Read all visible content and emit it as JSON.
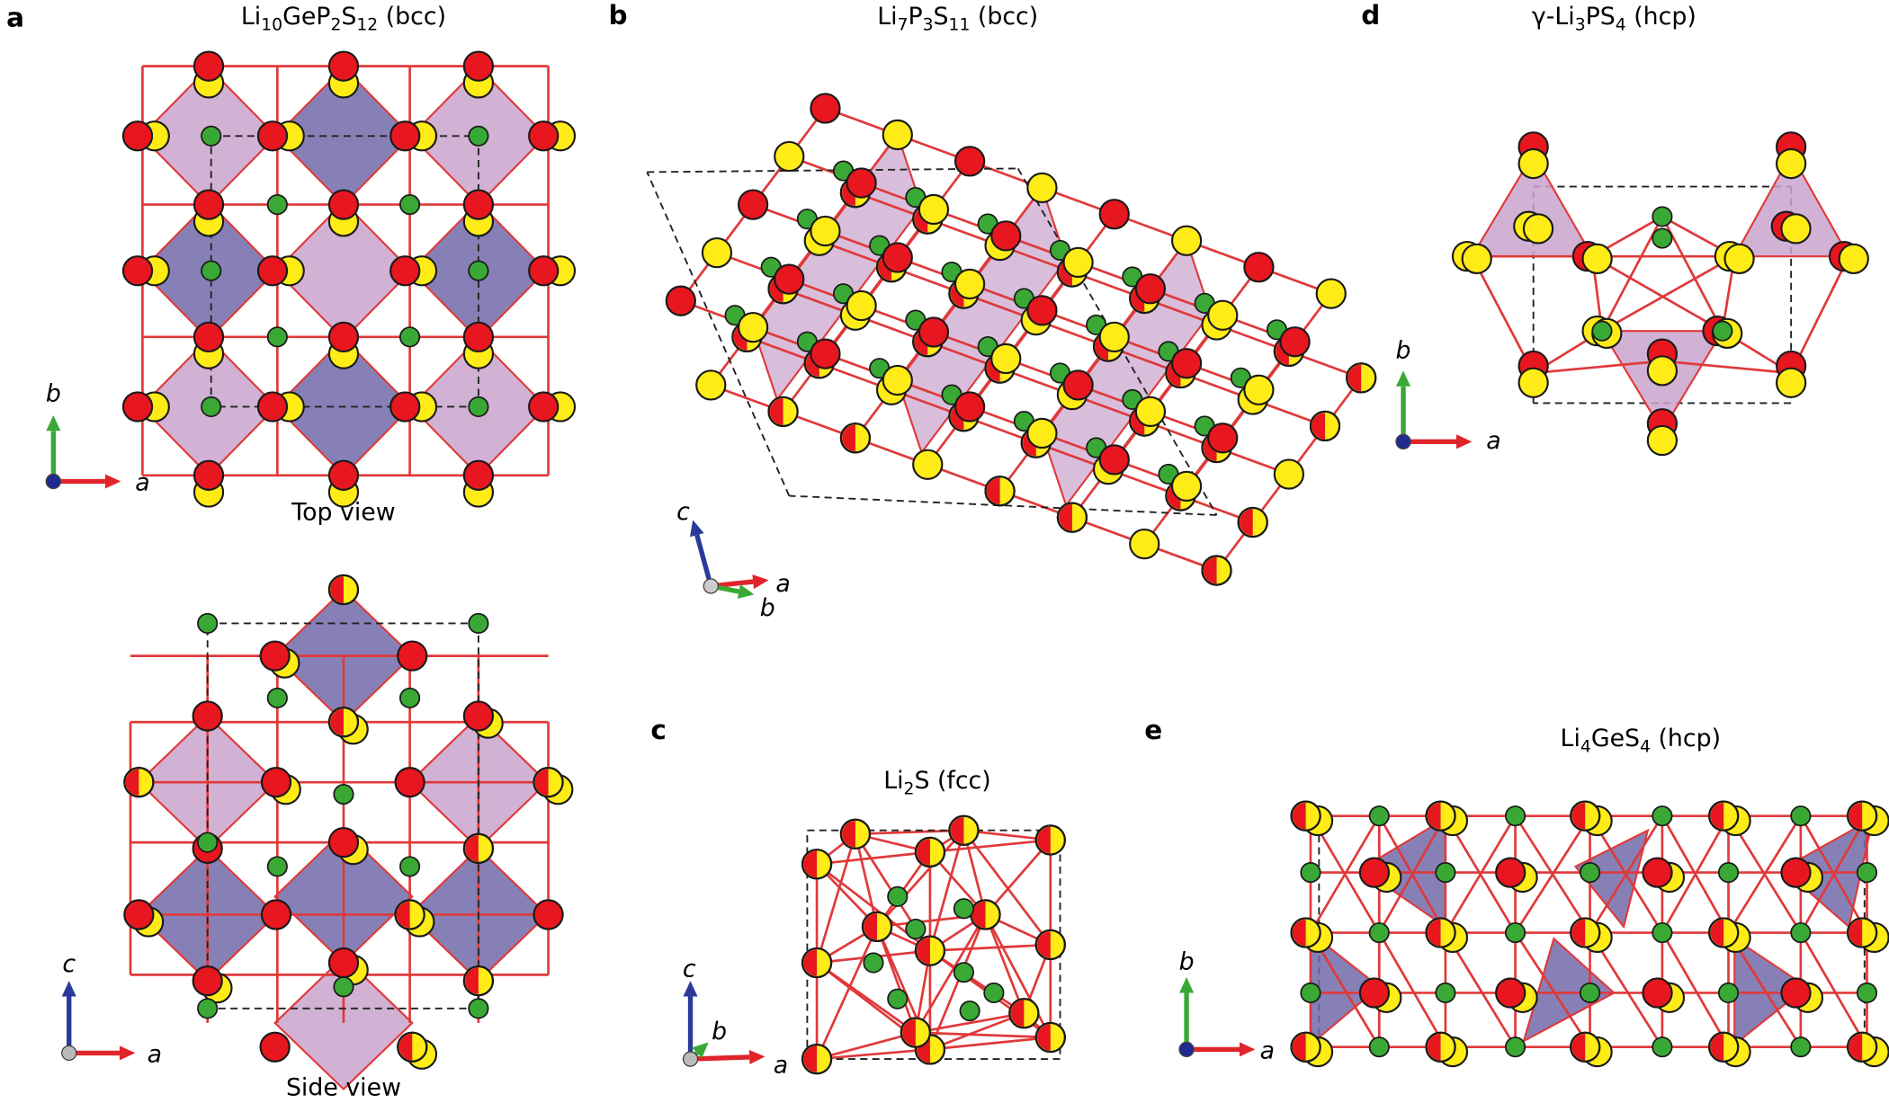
{
  "panels": [
    {
      "label": "a",
      "title": [
        {
          "t": "Li"
        },
        {
          "sub": "10"
        },
        {
          "t": "GeP"
        },
        {
          "sub": "2"
        },
        {
          "t": "S"
        },
        {
          "sub": "12"
        },
        {
          "t": " (bcc)"
        }
      ],
      "views": [
        "Top view",
        "Side view"
      ],
      "axes": [
        [
          "b",
          "a"
        ],
        [
          "c",
          "a"
        ]
      ]
    },
    {
      "label": "b",
      "title": [
        {
          "t": "Li"
        },
        {
          "sub": "7"
        },
        {
          "t": "P"
        },
        {
          "sub": "3"
        },
        {
          "t": "S"
        },
        {
          "sub": "11"
        },
        {
          "t": " (bcc)"
        }
      ],
      "axes": [
        [
          "c",
          "a",
          "b"
        ]
      ]
    },
    {
      "label": "c",
      "title": [
        {
          "t": "Li"
        },
        {
          "sub": "2"
        },
        {
          "t": "S (fcc)"
        }
      ],
      "axes": [
        [
          "c",
          "b",
          "a"
        ]
      ]
    },
    {
      "label": "d",
      "title": [
        {
          "t": "γ-Li"
        },
        {
          "sub": "3"
        },
        {
          "t": "PS"
        },
        {
          "sub": "4"
        },
        {
          "t": " (hcp)"
        }
      ],
      "axes": [
        [
          "b",
          "a"
        ]
      ]
    },
    {
      "label": "e",
      "title": [
        {
          "t": "Li"
        },
        {
          "sub": "4"
        },
        {
          "t": "GeS"
        },
        {
          "sub": "4"
        },
        {
          "t": " (hcp)"
        }
      ],
      "axes": [
        [
          "b",
          "a"
        ]
      ]
    }
  ]
}
